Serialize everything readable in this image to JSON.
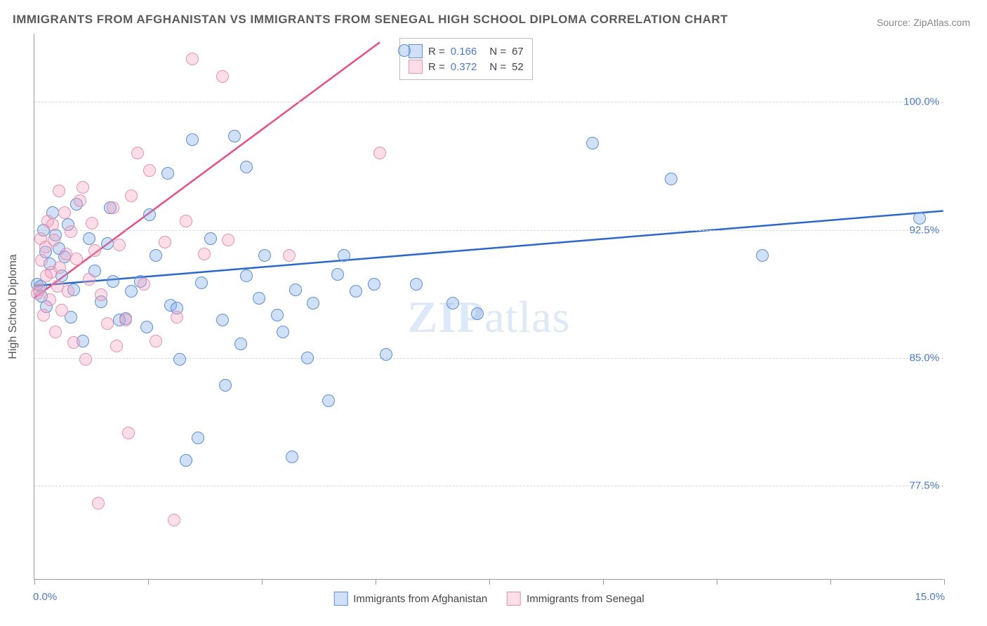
{
  "title": "IMMIGRANTS FROM AFGHANISTAN VS IMMIGRANTS FROM SENEGAL HIGH SCHOOL DIPLOMA CORRELATION CHART",
  "source": "Source: ZipAtlas.com",
  "watermark_a": "ZIP",
  "watermark_b": "atlas",
  "chart": {
    "type": "scatter",
    "xlim": [
      0,
      15
    ],
    "ylim": [
      72,
      104
    ],
    "x_axis_min_label": "0.0%",
    "x_axis_max_label": "15.0%",
    "y_axis_title": "High School Diploma",
    "y_ticks": [
      {
        "value": 77.5,
        "label": "77.5%"
      },
      {
        "value": 85.0,
        "label": "85.0%"
      },
      {
        "value": 92.5,
        "label": "92.5%"
      },
      {
        "value": 100.0,
        "label": "100.0%"
      }
    ],
    "x_tick_positions": [
      0,
      1.875,
      3.75,
      5.625,
      7.5,
      9.375,
      11.25,
      13.125,
      15
    ],
    "background_color": "#ffffff",
    "grid_color": "#d8d8d8",
    "series": [
      {
        "name": "Immigrants from Afghanistan",
        "color_fill": "rgba(120,165,230,0.35)",
        "color_stroke": "#5b8fd8",
        "trend_color": "#2b68c9",
        "r": "0.166",
        "n": "67",
        "trend": {
          "x1": 0,
          "y1": 89.2,
          "x2": 15,
          "y2": 93.6
        },
        "points": [
          [
            0.05,
            89.3
          ],
          [
            0.1,
            89.2
          ],
          [
            0.12,
            88.6
          ],
          [
            0.15,
            92.5
          ],
          [
            0.18,
            91.2
          ],
          [
            0.2,
            88.0
          ],
          [
            0.25,
            90.5
          ],
          [
            0.3,
            93.5
          ],
          [
            0.35,
            92.2
          ],
          [
            0.4,
            91.4
          ],
          [
            0.45,
            89.8
          ],
          [
            0.5,
            90.9
          ],
          [
            0.55,
            92.8
          ],
          [
            0.6,
            87.4
          ],
          [
            0.65,
            89.0
          ],
          [
            0.7,
            94.0
          ],
          [
            0.8,
            86.0
          ],
          [
            0.9,
            92.0
          ],
          [
            1.0,
            90.1
          ],
          [
            1.1,
            88.3
          ],
          [
            1.2,
            91.7
          ],
          [
            1.25,
            93.8
          ],
          [
            1.3,
            89.5
          ],
          [
            1.4,
            87.2
          ],
          [
            1.5,
            87.3
          ],
          [
            1.6,
            88.9
          ],
          [
            1.75,
            89.5
          ],
          [
            1.85,
            86.8
          ],
          [
            1.9,
            93.4
          ],
          [
            2.0,
            91.0
          ],
          [
            2.2,
            95.8
          ],
          [
            2.25,
            88.1
          ],
          [
            2.35,
            87.9
          ],
          [
            2.4,
            84.9
          ],
          [
            2.5,
            79.0
          ],
          [
            2.6,
            97.8
          ],
          [
            2.7,
            80.3
          ],
          [
            2.75,
            89.4
          ],
          [
            2.9,
            92.0
          ],
          [
            3.1,
            87.2
          ],
          [
            3.15,
            83.4
          ],
          [
            3.3,
            98.0
          ],
          [
            3.4,
            85.8
          ],
          [
            3.5,
            96.2
          ],
          [
            3.5,
            89.8
          ],
          [
            3.7,
            88.5
          ],
          [
            3.8,
            91.0
          ],
          [
            4.0,
            87.5
          ],
          [
            4.1,
            86.5
          ],
          [
            4.25,
            79.2
          ],
          [
            4.3,
            89.0
          ],
          [
            4.5,
            85.0
          ],
          [
            4.6,
            88.2
          ],
          [
            4.85,
            82.5
          ],
          [
            5.0,
            89.9
          ],
          [
            5.1,
            91.0
          ],
          [
            5.3,
            88.9
          ],
          [
            5.6,
            89.3
          ],
          [
            5.8,
            85.2
          ],
          [
            6.1,
            103.0
          ],
          [
            6.3,
            89.3
          ],
          [
            6.9,
            88.2
          ],
          [
            7.3,
            87.6
          ],
          [
            9.2,
            97.6
          ],
          [
            10.5,
            95.5
          ],
          [
            12.0,
            91.0
          ],
          [
            14.6,
            93.2
          ]
        ]
      },
      {
        "name": "Immigrants from Senegal",
        "color_fill": "rgba(245,160,190,0.35)",
        "color_stroke": "#e792b0",
        "trend_color": "#ea4d86",
        "r": "0.372",
        "n": "52",
        "trend": {
          "x1": 0,
          "y1": 88.5,
          "x2": 5.7,
          "y2": 103.5
        },
        "points": [
          [
            0.05,
            88.8
          ],
          [
            0.08,
            89.0
          ],
          [
            0.1,
            92.0
          ],
          [
            0.12,
            90.7
          ],
          [
            0.15,
            87.5
          ],
          [
            0.18,
            91.5
          ],
          [
            0.2,
            89.8
          ],
          [
            0.22,
            93.0
          ],
          [
            0.25,
            88.4
          ],
          [
            0.28,
            90.0
          ],
          [
            0.3,
            92.8
          ],
          [
            0.32,
            91.9
          ],
          [
            0.35,
            86.5
          ],
          [
            0.38,
            89.2
          ],
          [
            0.4,
            94.8
          ],
          [
            0.42,
            90.3
          ],
          [
            0.45,
            87.8
          ],
          [
            0.5,
            93.5
          ],
          [
            0.52,
            91.1
          ],
          [
            0.55,
            88.9
          ],
          [
            0.6,
            92.4
          ],
          [
            0.65,
            85.9
          ],
          [
            0.7,
            90.8
          ],
          [
            0.75,
            94.2
          ],
          [
            0.8,
            95.0
          ],
          [
            0.85,
            84.9
          ],
          [
            0.9,
            89.6
          ],
          [
            0.95,
            92.9
          ],
          [
            1.0,
            91.3
          ],
          [
            1.05,
            76.5
          ],
          [
            1.1,
            88.7
          ],
          [
            1.2,
            87.0
          ],
          [
            1.3,
            93.8
          ],
          [
            1.35,
            85.7
          ],
          [
            1.4,
            91.6
          ],
          [
            1.5,
            87.2
          ],
          [
            1.55,
            80.6
          ],
          [
            1.6,
            94.5
          ],
          [
            1.7,
            97.0
          ],
          [
            1.8,
            89.3
          ],
          [
            1.9,
            96.0
          ],
          [
            2.0,
            86.0
          ],
          [
            2.15,
            91.8
          ],
          [
            2.3,
            75.5
          ],
          [
            2.35,
            87.4
          ],
          [
            2.5,
            93.0
          ],
          [
            2.6,
            102.5
          ],
          [
            2.8,
            91.1
          ],
          [
            3.1,
            101.5
          ],
          [
            3.2,
            91.9
          ],
          [
            4.2,
            91.0
          ],
          [
            5.7,
            97.0
          ]
        ]
      }
    ],
    "legend_bottom": [
      {
        "swatch": "blue",
        "label": "Immigrants from Afghanistan"
      },
      {
        "swatch": "pink",
        "label": "Immigrants from Senegal"
      }
    ]
  }
}
